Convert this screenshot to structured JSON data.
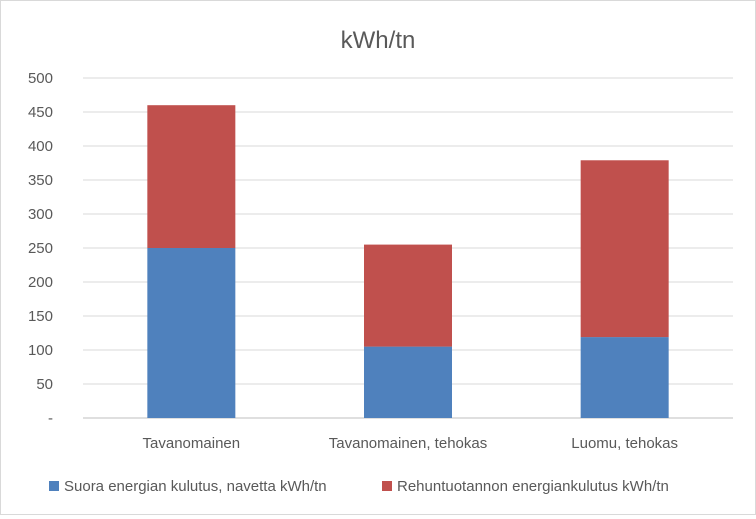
{
  "chart_data": {
    "type": "bar",
    "stacked": true,
    "title": "kWh/tn",
    "categories": [
      "Tavanomainen",
      "Tavanomainen, tehokas",
      "Luomu, tehokas"
    ],
    "series": [
      {
        "name": "Suora energian kulutus, navetta  kWh/tn",
        "color": "#4f81bd",
        "values": [
          250,
          105,
          119
        ]
      },
      {
        "name": "Rehuntuotannon energiankulutus kWh/tn",
        "color": "#c0504d",
        "values": [
          210,
          150,
          260
        ]
      }
    ],
    "ylim": [
      0,
      500
    ],
    "y_ticks": [
      "-",
      "50",
      "100",
      "150",
      "200",
      "250",
      "300",
      "350",
      "400",
      "450",
      "500"
    ],
    "grid": true,
    "legend_position": "bottom"
  }
}
